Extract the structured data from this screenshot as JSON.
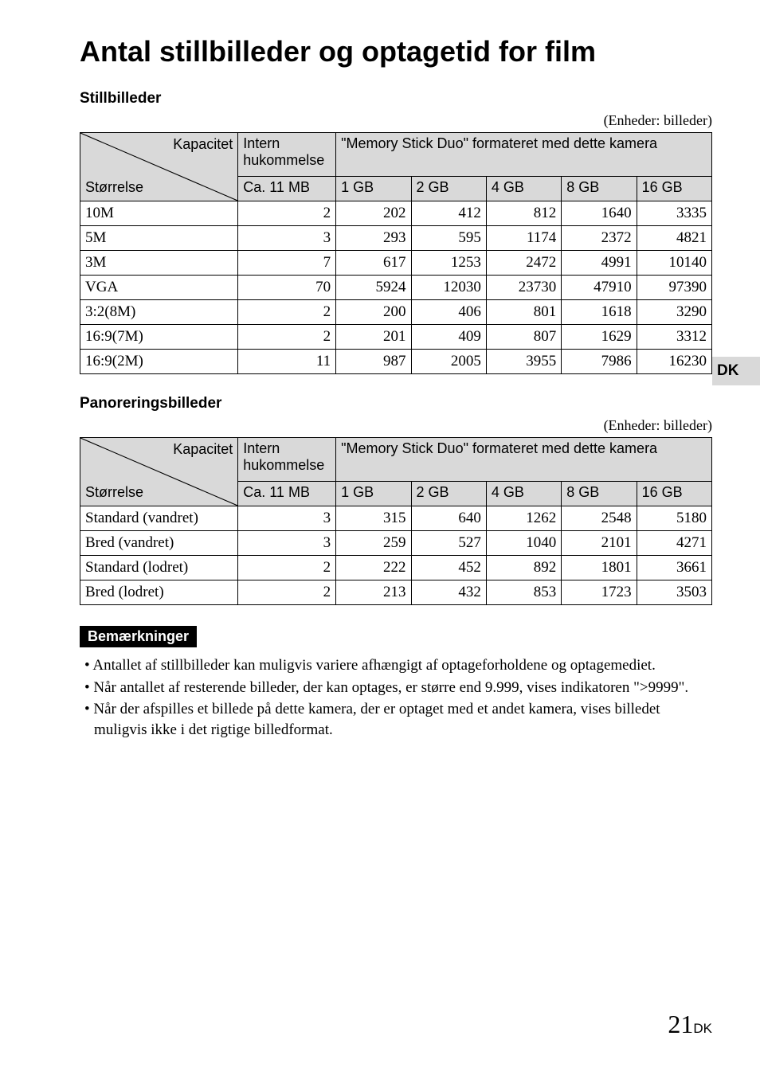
{
  "title": "Antal stillbilleder og optagetid for film",
  "side_tab": "DK",
  "units_label": "(Enheder: billeder)",
  "diag_top": "Kapacitet",
  "diag_bottom": "Størrelse",
  "col_intern": "Intern hukommelse",
  "col_msd": "\"Memory Stick Duo\" formateret med dette kamera",
  "col_intern_sub": "Ca. 11 MB",
  "cap_cols": [
    "1 GB",
    "2 GB",
    "4 GB",
    "8 GB",
    "16 GB"
  ],
  "sections": {
    "still": {
      "title": "Stillbilleder",
      "rows": [
        {
          "label": "10M",
          "intern": "2",
          "v": [
            "202",
            "412",
            "812",
            "1640",
            "3335"
          ]
        },
        {
          "label": "5M",
          "intern": "3",
          "v": [
            "293",
            "595",
            "1174",
            "2372",
            "4821"
          ]
        },
        {
          "label": "3M",
          "intern": "7",
          "v": [
            "617",
            "1253",
            "2472",
            "4991",
            "10140"
          ]
        },
        {
          "label": "VGA",
          "intern": "70",
          "v": [
            "5924",
            "12030",
            "23730",
            "47910",
            "97390"
          ]
        },
        {
          "label": "3:2(8M)",
          "intern": "2",
          "v": [
            "200",
            "406",
            "801",
            "1618",
            "3290"
          ]
        },
        {
          "label": "16:9(7M)",
          "intern": "2",
          "v": [
            "201",
            "409",
            "807",
            "1629",
            "3312"
          ]
        },
        {
          "label": "16:9(2M)",
          "intern": "11",
          "v": [
            "987",
            "2005",
            "3955",
            "7986",
            "16230"
          ]
        }
      ]
    },
    "pano": {
      "title": "Panoreringsbilleder",
      "rows": [
        {
          "label": "Standard (vandret)",
          "intern": "3",
          "v": [
            "315",
            "640",
            "1262",
            "2548",
            "5180"
          ]
        },
        {
          "label": "Bred (vandret)",
          "intern": "3",
          "v": [
            "259",
            "527",
            "1040",
            "2101",
            "4271"
          ]
        },
        {
          "label": "Standard (lodret)",
          "intern": "2",
          "v": [
            "222",
            "452",
            "892",
            "1801",
            "3661"
          ]
        },
        {
          "label": "Bred (lodret)",
          "intern": "2",
          "v": [
            "213",
            "432",
            "853",
            "1723",
            "3503"
          ]
        }
      ]
    }
  },
  "notes_title": "Bemærkninger",
  "notes": [
    "Antallet af stillbilleder kan muligvis variere afhængigt af optageforholdene og optagemediet.",
    "Når antallet af resterende billeder, der kan optages, er større end 9.999, vises indikatoren \">9999\".",
    "Når der afspilles et billede på dette kamera, der er optaget med et andet kamera, vises billedet muligvis ikke i det rigtige billedformat."
  ],
  "page_number": "21",
  "page_suffix": "DK",
  "style": {
    "background_color": "#ffffff",
    "header_fill": "#d9d9d9",
    "border_color": "#000000",
    "text_color": "#000000",
    "notes_tag_bg": "#000000",
    "notes_tag_fg": "#ffffff",
    "title_fontsize": 36,
    "section_title_fontsize": 19,
    "body_fontsize": 18,
    "serif_font": "Times New Roman",
    "sans_font": "Arial"
  }
}
